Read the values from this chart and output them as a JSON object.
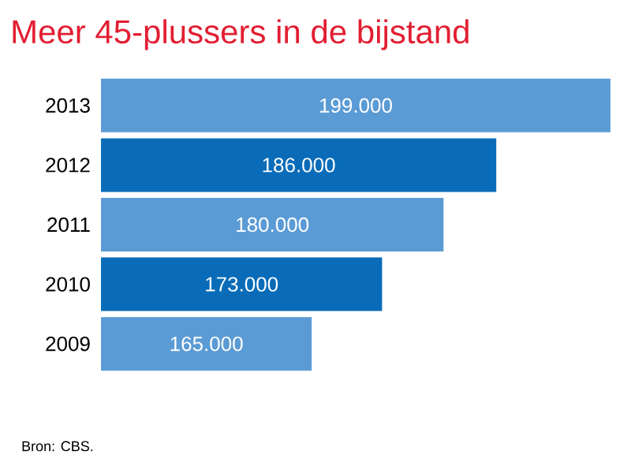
{
  "chart_data": {
    "type": "bar",
    "orientation": "horizontal",
    "title": "Meer 45-plussers in de bijstand",
    "categories": [
      "2013",
      "2012",
      "2011",
      "2010",
      "2009"
    ],
    "values": [
      199000,
      186000,
      180000,
      173000,
      165000
    ],
    "value_labels": [
      "199.000",
      "186.000",
      "180.000",
      "173.000",
      "165.000"
    ],
    "colors": [
      "#5b9bd5",
      "#0a6cb8",
      "#5b9bd5",
      "#0a6cb8",
      "#5b9bd5"
    ],
    "xlim": [
      141000,
      199000
    ],
    "tick_labels": "y",
    "annotations": [
      "Bron: CBS."
    ]
  }
}
